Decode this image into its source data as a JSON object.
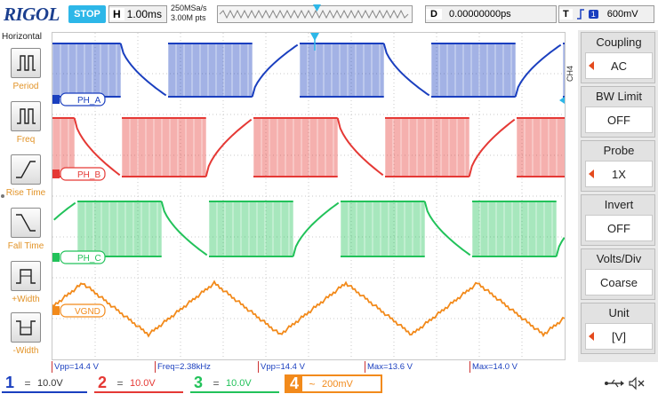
{
  "topbar": {
    "logo": "RIGOL",
    "run_state": "STOP",
    "horizontal_tag": "H",
    "horizontal_scale": "1.00ms",
    "sample_rate": "250MSa/s",
    "memory_depth": "3.00M pts",
    "delay_tag": "D",
    "delay_value": "0.00000000ps",
    "trigger_tag": "T",
    "trigger_slope_icon": "rising-edge-icon",
    "trigger_source": "1",
    "trigger_level": "600mV"
  },
  "left_menu": {
    "title": "Horizontal",
    "items": [
      {
        "label": "Period",
        "icon": "period-icon"
      },
      {
        "label": "Freq",
        "icon": "freq-icon"
      },
      {
        "label": "Rise Time",
        "icon": "rise-time-icon"
      },
      {
        "label": "Fall Time",
        "icon": "fall-time-icon"
      },
      {
        "label": "+Width",
        "icon": "positive-width-icon"
      },
      {
        "label": "-Width",
        "icon": "negative-width-icon"
      }
    ]
  },
  "channel_labels": {
    "ch1": "PH_A",
    "ch2": "PH_B",
    "ch3": "PH_C",
    "ch4": "VGND"
  },
  "right_menu": {
    "channel": "CH4",
    "items": [
      {
        "title": "Coupling",
        "value": "AC"
      },
      {
        "title": "BW Limit",
        "value": "OFF"
      },
      {
        "title": "Probe",
        "value": "1X"
      },
      {
        "title": "Invert",
        "value": "OFF"
      },
      {
        "title": "Volts/Div",
        "value": "Coarse"
      },
      {
        "title": "Unit",
        "value": "[V]"
      }
    ]
  },
  "measurements": [
    {
      "text": "Vpp=14.4 V",
      "color": "#1a3fbf"
    },
    {
      "text": "Freq=2.38kHz",
      "color": "#1a3fbf"
    },
    {
      "text": "Vpp=14.4 V",
      "color": "#1a3fbf"
    },
    {
      "text": "Max=13.6 V",
      "color": "#1a3fbf"
    },
    {
      "text": "Max=14.0 V",
      "color": "#1a3fbf"
    }
  ],
  "channels": [
    {
      "num": "1",
      "coupling": "=",
      "scale": "10.0V",
      "color": "#1a3fbf"
    },
    {
      "num": "2",
      "coupling": "=",
      "scale": "10.0V",
      "color": "#e53935"
    },
    {
      "num": "3",
      "coupling": "=",
      "scale": "10.0V",
      "color": "#22c25a"
    },
    {
      "num": "4",
      "coupling": "~",
      "scale": "200mV",
      "color": "#f28a1b"
    }
  ],
  "colors": {
    "ch1": "#1a3fbf",
    "ch2": "#e53935",
    "ch3": "#22c25a",
    "ch4": "#f28a1b",
    "accent": "#2db7e8"
  },
  "status_icons": [
    "usb-icon",
    "speaker-mute-icon"
  ]
}
